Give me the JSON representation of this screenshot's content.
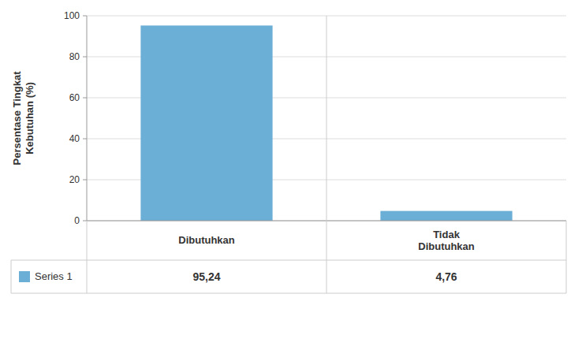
{
  "chart_data": {
    "type": "bar",
    "y_label": "Persentase Tingkat\nKebutuhan (%)",
    "categories": [
      "Dibutuhkan",
      "Tidak\nDibutuhkan"
    ],
    "series": [
      {
        "name": "Series 1",
        "color": "#6baed6",
        "values": [
          95.24,
          4.76
        ],
        "value_labels": [
          "95,24",
          "4,76"
        ]
      }
    ],
    "ylim": [
      0,
      100
    ],
    "yticks": [
      0,
      20,
      40,
      60,
      80,
      100
    ],
    "grid": true,
    "legend": "bottom",
    "data_labels": true
  }
}
